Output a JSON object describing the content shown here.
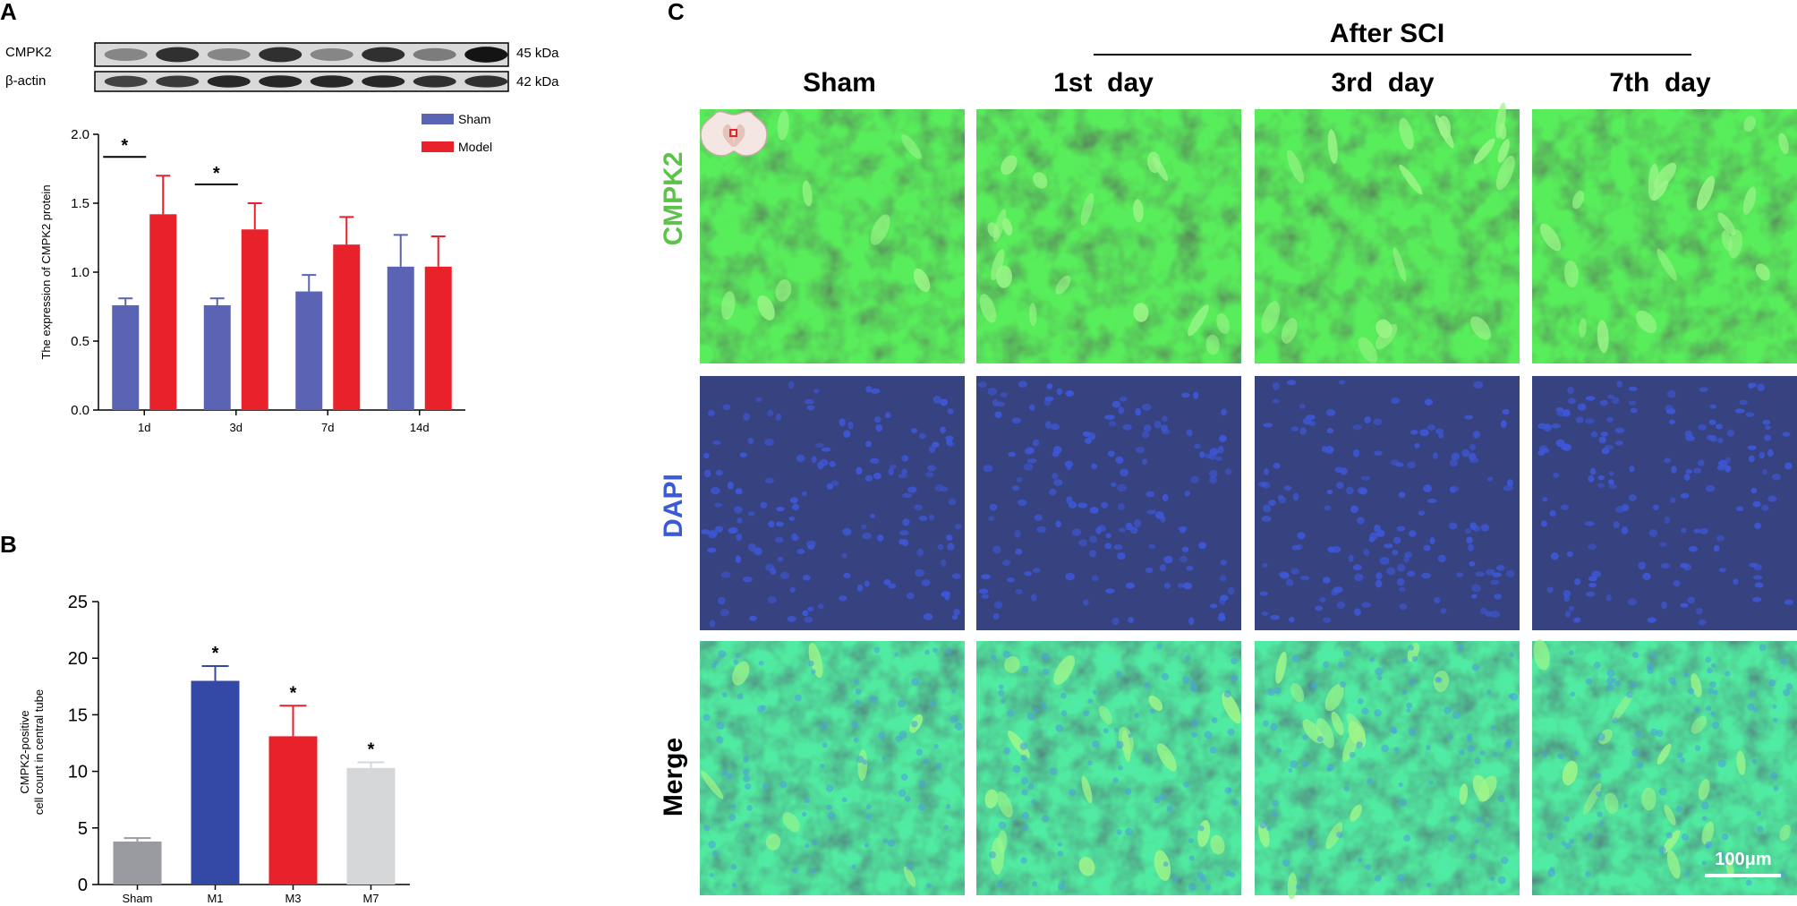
{
  "panels": {
    "a": {
      "label": "A",
      "blot": {
        "rows": [
          {
            "name": "CMPK2",
            "size": "45 kDa",
            "intensity": [
              0.35,
              0.8,
              0.35,
              0.8,
              0.35,
              0.8,
              0.4,
              0.95
            ]
          },
          {
            "name": "β-actin",
            "size": "42 kDa",
            "intensity": [
              0.7,
              0.75,
              0.85,
              0.85,
              0.85,
              0.85,
              0.8,
              0.8
            ]
          }
        ]
      }
    },
    "b": {
      "label": "B"
    },
    "c": {
      "label": "C",
      "header": "After SCI",
      "columns": [
        "Sham",
        "1st  day",
        "3rd  day",
        "7th  day"
      ],
      "rows": [
        {
          "label": "CMPK2",
          "color": "#5cc24a"
        },
        {
          "label": "DAPI",
          "color": "#3b5bd6"
        },
        {
          "label": "Merge",
          "color": "#000000"
        }
      ],
      "scalebar": "100μm"
    }
  },
  "chart_data": [
    {
      "type": "bar",
      "categories": [
        "1d",
        "3d",
        "7d",
        "14d"
      ],
      "series": [
        {
          "name": "Sham",
          "color": "#5a63b4",
          "values": [
            0.76,
            0.76,
            0.86,
            1.04
          ],
          "errors": [
            0.05,
            0.05,
            0.12,
            0.23
          ]
        },
        {
          "name": "Model",
          "color": "#e8212b",
          "values": [
            1.42,
            1.31,
            1.2,
            1.04
          ],
          "errors": [
            0.28,
            0.19,
            0.2,
            0.22
          ]
        }
      ],
      "ylabel": "The expression of  CMPK2 protein",
      "ylim": [
        0,
        2.0
      ],
      "yticks": [
        "0.0",
        "0.5",
        "1.0",
        "1.5",
        "2.0"
      ],
      "significance": [
        {
          "category": "1d",
          "mark": "*"
        },
        {
          "category": "3d",
          "mark": "*"
        }
      ],
      "legend": "top-right"
    },
    {
      "type": "bar",
      "categories": [
        "Sham",
        "M1",
        "M3",
        "M7"
      ],
      "values": [
        3.8,
        18.0,
        13.1,
        10.3
      ],
      "errors": [
        0.3,
        1.3,
        2.7,
        0.5
      ],
      "colors": [
        "#9a9ba1",
        "#3448a6",
        "#e8212b",
        "#d6d7d9"
      ],
      "marks": [
        "",
        "*",
        "*",
        "*"
      ],
      "ylabel": [
        "CMPK2-positive",
        "cell count in central tube"
      ],
      "ylim": [
        0,
        25
      ],
      "yticks": [
        "0",
        "5",
        "10",
        "15",
        "20",
        "25"
      ]
    }
  ]
}
